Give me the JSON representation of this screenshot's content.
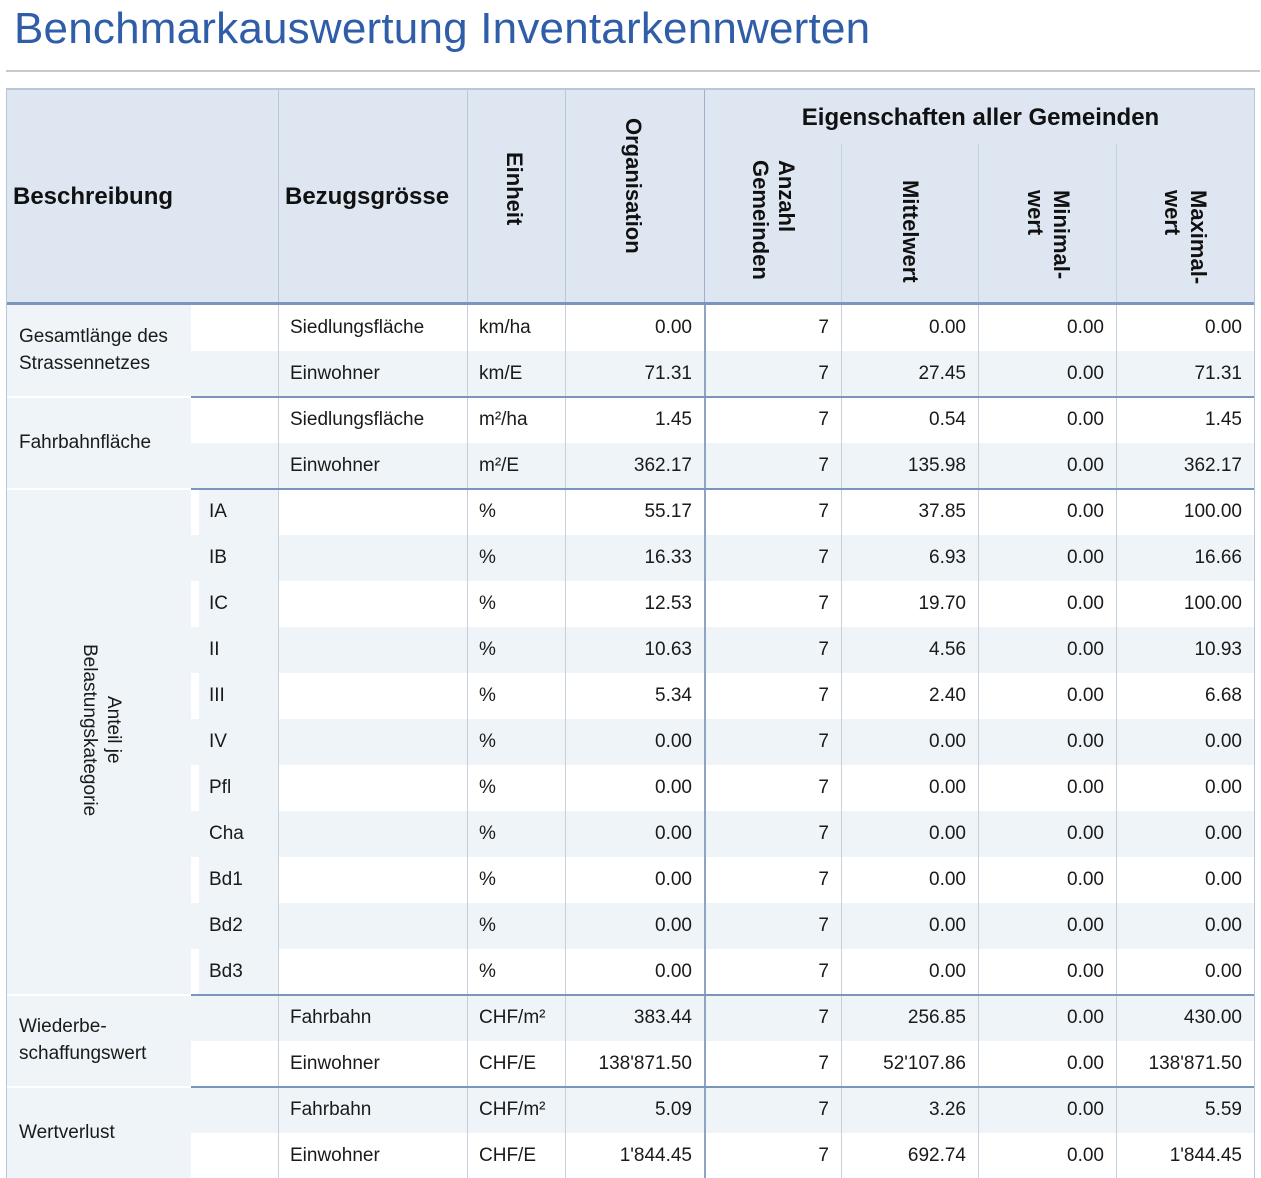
{
  "title": "Benchmarkauswertung Inventarkennwerten",
  "header": {
    "beschreibung": "Beschreibung",
    "bezugsgroesse": "Bezugsgrösse",
    "einheit": "Einheit",
    "organisation": "Organisation",
    "group": "Eigenschaften aller Gemeinden",
    "anzahl_l1": "Anzahl",
    "anzahl_l2": "Gemeinden",
    "mittelwert": "Mittelwert",
    "minimal_l1": "Minimal-",
    "minimal_l2": "wert",
    "maximal_l1": "Maximal-",
    "maximal_l2": "wert"
  },
  "groups": {
    "g1_l1": "Gesamtlänge des",
    "g1_l2": "Strassennetzes",
    "g2": "Fahrbahnfläche",
    "g3_l1": "Anteil je",
    "g3_l2": "Belastungskategorie",
    "g4_l1": "Wiederbe-",
    "g4_l2": "schaffungswert",
    "g5": "Wertverlust"
  },
  "rows": [
    {
      "sub": "",
      "bezug": "Siedlungsfläche",
      "einheit": "km/ha",
      "org": "0.00",
      "anzahl": "7",
      "mittel": "0.00",
      "min": "0.00",
      "max": "0.00"
    },
    {
      "sub": "",
      "bezug": "Einwohner",
      "einheit": "km/E",
      "org": "71.31",
      "anzahl": "7",
      "mittel": "27.45",
      "min": "0.00",
      "max": "71.31"
    },
    {
      "sub": "",
      "bezug": "Siedlungsfläche",
      "einheit": "m²/ha",
      "org": "1.45",
      "anzahl": "7",
      "mittel": "0.54",
      "min": "0.00",
      "max": "1.45"
    },
    {
      "sub": "",
      "bezug": "Einwohner",
      "einheit": "m²/E",
      "org": "362.17",
      "anzahl": "7",
      "mittel": "135.98",
      "min": "0.00",
      "max": "362.17"
    },
    {
      "sub": "IA",
      "bezug": "",
      "einheit": "%",
      "org": "55.17",
      "anzahl": "7",
      "mittel": "37.85",
      "min": "0.00",
      "max": "100.00"
    },
    {
      "sub": "IB",
      "bezug": "",
      "einheit": "%",
      "org": "16.33",
      "anzahl": "7",
      "mittel": "6.93",
      "min": "0.00",
      "max": "16.66"
    },
    {
      "sub": "IC",
      "bezug": "",
      "einheit": "%",
      "org": "12.53",
      "anzahl": "7",
      "mittel": "19.70",
      "min": "0.00",
      "max": "100.00"
    },
    {
      "sub": "II",
      "bezug": "",
      "einheit": "%",
      "org": "10.63",
      "anzahl": "7",
      "mittel": "4.56",
      "min": "0.00",
      "max": "10.93"
    },
    {
      "sub": "III",
      "bezug": "",
      "einheit": "%",
      "org": "5.34",
      "anzahl": "7",
      "mittel": "2.40",
      "min": "0.00",
      "max": "6.68"
    },
    {
      "sub": "IV",
      "bezug": "",
      "einheit": "%",
      "org": "0.00",
      "anzahl": "7",
      "mittel": "0.00",
      "min": "0.00",
      "max": "0.00"
    },
    {
      "sub": "Pfl",
      "bezug": "",
      "einheit": "%",
      "org": "0.00",
      "anzahl": "7",
      "mittel": "0.00",
      "min": "0.00",
      "max": "0.00"
    },
    {
      "sub": "Cha",
      "bezug": "",
      "einheit": "%",
      "org": "0.00",
      "anzahl": "7",
      "mittel": "0.00",
      "min": "0.00",
      "max": "0.00"
    },
    {
      "sub": "Bd1",
      "bezug": "",
      "einheit": "%",
      "org": "0.00",
      "anzahl": "7",
      "mittel": "0.00",
      "min": "0.00",
      "max": "0.00"
    },
    {
      "sub": "Bd2",
      "bezug": "",
      "einheit": "%",
      "org": "0.00",
      "anzahl": "7",
      "mittel": "0.00",
      "min": "0.00",
      "max": "0.00"
    },
    {
      "sub": "Bd3",
      "bezug": "",
      "einheit": "%",
      "org": "0.00",
      "anzahl": "7",
      "mittel": "0.00",
      "min": "0.00",
      "max": "0.00"
    },
    {
      "sub": "",
      "bezug": "Fahrbahn",
      "einheit": "CHF/m²",
      "org": "383.44",
      "anzahl": "7",
      "mittel": "256.85",
      "min": "0.00",
      "max": "430.00"
    },
    {
      "sub": "",
      "bezug": "Einwohner",
      "einheit": "CHF/E",
      "org": "138'871.50",
      "anzahl": "7",
      "mittel": "52'107.86",
      "min": "0.00",
      "max": "138'871.50"
    },
    {
      "sub": "",
      "bezug": "Fahrbahn",
      "einheit": "CHF/m²",
      "org": "5.09",
      "anzahl": "7",
      "mittel": "3.26",
      "min": "0.00",
      "max": "5.59"
    },
    {
      "sub": "",
      "bezug": "Einwohner",
      "einheit": "CHF/E",
      "org": "1'844.45",
      "anzahl": "7",
      "mittel": "692.74",
      "min": "0.00",
      "max": "1'844.45"
    }
  ]
}
